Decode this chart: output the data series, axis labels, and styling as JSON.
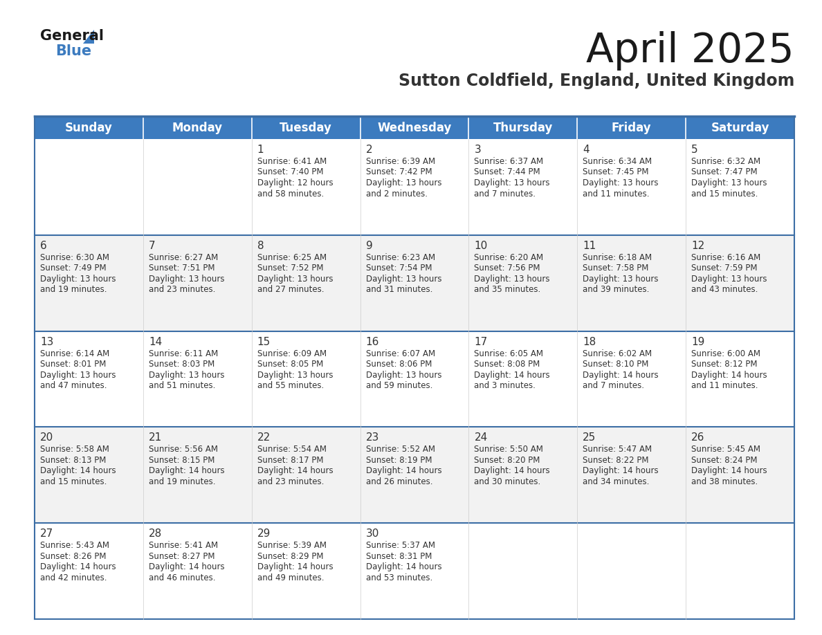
{
  "title": "April 2025",
  "subtitle": "Sutton Coldfield, England, United Kingdom",
  "header_color": "#3C7BBF",
  "header_text_color": "#FFFFFF",
  "cell_bg_white": "#FFFFFF",
  "cell_bg_gray": "#F2F2F2",
  "border_color": "#3C6EA5",
  "row_line_color": "#3C6EA5",
  "text_color": "#333333",
  "days_of_week": [
    "Sunday",
    "Monday",
    "Tuesday",
    "Wednesday",
    "Thursday",
    "Friday",
    "Saturday"
  ],
  "calendar_data": [
    [
      null,
      null,
      {
        "day": 1,
        "sunrise": "6:41 AM",
        "sunset": "7:40 PM",
        "daylight": "12 hours and 58 minutes"
      },
      {
        "day": 2,
        "sunrise": "6:39 AM",
        "sunset": "7:42 PM",
        "daylight": "13 hours and 2 minutes"
      },
      {
        "day": 3,
        "sunrise": "6:37 AM",
        "sunset": "7:44 PM",
        "daylight": "13 hours and 7 minutes"
      },
      {
        "day": 4,
        "sunrise": "6:34 AM",
        "sunset": "7:45 PM",
        "daylight": "13 hours and 11 minutes"
      },
      {
        "day": 5,
        "sunrise": "6:32 AM",
        "sunset": "7:47 PM",
        "daylight": "13 hours and 15 minutes"
      }
    ],
    [
      {
        "day": 6,
        "sunrise": "6:30 AM",
        "sunset": "7:49 PM",
        "daylight": "13 hours and 19 minutes"
      },
      {
        "day": 7,
        "sunrise": "6:27 AM",
        "sunset": "7:51 PM",
        "daylight": "13 hours and 23 minutes"
      },
      {
        "day": 8,
        "sunrise": "6:25 AM",
        "sunset": "7:52 PM",
        "daylight": "13 hours and 27 minutes"
      },
      {
        "day": 9,
        "sunrise": "6:23 AM",
        "sunset": "7:54 PM",
        "daylight": "13 hours and 31 minutes"
      },
      {
        "day": 10,
        "sunrise": "6:20 AM",
        "sunset": "7:56 PM",
        "daylight": "13 hours and 35 minutes"
      },
      {
        "day": 11,
        "sunrise": "6:18 AM",
        "sunset": "7:58 PM",
        "daylight": "13 hours and 39 minutes"
      },
      {
        "day": 12,
        "sunrise": "6:16 AM",
        "sunset": "7:59 PM",
        "daylight": "13 hours and 43 minutes"
      }
    ],
    [
      {
        "day": 13,
        "sunrise": "6:14 AM",
        "sunset": "8:01 PM",
        "daylight": "13 hours and 47 minutes"
      },
      {
        "day": 14,
        "sunrise": "6:11 AM",
        "sunset": "8:03 PM",
        "daylight": "13 hours and 51 minutes"
      },
      {
        "day": 15,
        "sunrise": "6:09 AM",
        "sunset": "8:05 PM",
        "daylight": "13 hours and 55 minutes"
      },
      {
        "day": 16,
        "sunrise": "6:07 AM",
        "sunset": "8:06 PM",
        "daylight": "13 hours and 59 minutes"
      },
      {
        "day": 17,
        "sunrise": "6:05 AM",
        "sunset": "8:08 PM",
        "daylight": "14 hours and 3 minutes"
      },
      {
        "day": 18,
        "sunrise": "6:02 AM",
        "sunset": "8:10 PM",
        "daylight": "14 hours and 7 minutes"
      },
      {
        "day": 19,
        "sunrise": "6:00 AM",
        "sunset": "8:12 PM",
        "daylight": "14 hours and 11 minutes"
      }
    ],
    [
      {
        "day": 20,
        "sunrise": "5:58 AM",
        "sunset": "8:13 PM",
        "daylight": "14 hours and 15 minutes"
      },
      {
        "day": 21,
        "sunrise": "5:56 AM",
        "sunset": "8:15 PM",
        "daylight": "14 hours and 19 minutes"
      },
      {
        "day": 22,
        "sunrise": "5:54 AM",
        "sunset": "8:17 PM",
        "daylight": "14 hours and 23 minutes"
      },
      {
        "day": 23,
        "sunrise": "5:52 AM",
        "sunset": "8:19 PM",
        "daylight": "14 hours and 26 minutes"
      },
      {
        "day": 24,
        "sunrise": "5:50 AM",
        "sunset": "8:20 PM",
        "daylight": "14 hours and 30 minutes"
      },
      {
        "day": 25,
        "sunrise": "5:47 AM",
        "sunset": "8:22 PM",
        "daylight": "14 hours and 34 minutes"
      },
      {
        "day": 26,
        "sunrise": "5:45 AM",
        "sunset": "8:24 PM",
        "daylight": "14 hours and 38 minutes"
      }
    ],
    [
      {
        "day": 27,
        "sunrise": "5:43 AM",
        "sunset": "8:26 PM",
        "daylight": "14 hours and 42 minutes"
      },
      {
        "day": 28,
        "sunrise": "5:41 AM",
        "sunset": "8:27 PM",
        "daylight": "14 hours and 46 minutes"
      },
      {
        "day": 29,
        "sunrise": "5:39 AM",
        "sunset": "8:29 PM",
        "daylight": "14 hours and 49 minutes"
      },
      {
        "day": 30,
        "sunrise": "5:37 AM",
        "sunset": "8:31 PM",
        "daylight": "14 hours and 53 minutes"
      },
      null,
      null,
      null
    ]
  ],
  "title_fontsize": 42,
  "subtitle_fontsize": 17,
  "header_fontsize": 12,
  "day_num_fontsize": 11,
  "cell_text_fontsize": 8.5
}
